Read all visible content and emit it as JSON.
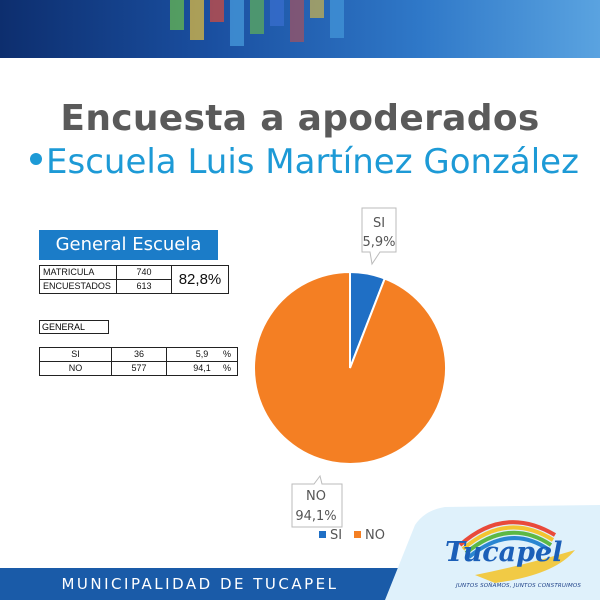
{
  "title": "Encuesta a apoderados",
  "subtitle": "Escuela Luis Martínez González",
  "section_label": "General Escuela",
  "summary": {
    "rows": [
      {
        "label": "MATRICULA",
        "value": "740"
      },
      {
        "label": "ENCUESTADOS",
        "value": "613"
      }
    ],
    "percentage": "82,8%"
  },
  "general_label": "GENERAL",
  "results": {
    "rows": [
      {
        "label": "SI",
        "count": "36",
        "percent": "5,9",
        "unit": "%"
      },
      {
        "label": "NO",
        "count": "577",
        "percent": "94,1",
        "unit": "%"
      }
    ]
  },
  "colors": {
    "si": "#1f6fc5",
    "no": "#f47f23",
    "accent": "#1d9ad6",
    "banner": "#1a5ba8"
  },
  "chart_data": {
    "type": "pie",
    "categories": [
      "SI",
      "NO"
    ],
    "values": [
      5.9,
      94.1
    ],
    "data_labels": [
      {
        "name": "SI",
        "value": "5,9%"
      },
      {
        "name": "NO",
        "value": "94,1%"
      }
    ],
    "legend": [
      "SI",
      "NO"
    ],
    "legend_position": "bottom"
  },
  "footer": {
    "text": "MUNICIPALIDAD DE TUCAPEL",
    "logo_text": "Tucapel",
    "slogan": "JUNTOS SOÑAMOS, JUNTOS CONSTRUIMOS"
  }
}
